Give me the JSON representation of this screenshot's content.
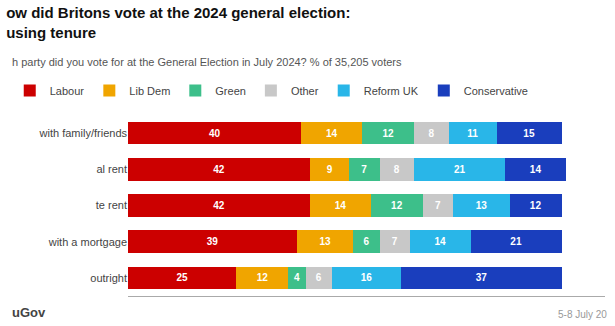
{
  "chart_data": {
    "type": "bar",
    "orientation": "horizontal",
    "stacked": true,
    "title": "ow did Britons vote at the 2024 general election:\nusing tenure",
    "subtitle": "h party did you vote for at the General Election in July 2024? % of 35,205 voters",
    "annotations": [
      "uGov",
      "5-8 July 20"
    ],
    "categories": [
      "with family/friends",
      "al rent",
      "te rent",
      "with a mortgage",
      "outright"
    ],
    "series": [
      {
        "name": "Labour",
        "color": "#cc0000",
        "values": [
          40,
          42,
          42,
          39,
          25
        ]
      },
      {
        "name": "Lib Dem",
        "color": "#f0a500",
        "values": [
          14,
          9,
          14,
          13,
          12
        ]
      },
      {
        "name": "Green",
        "color": "#3dbf8a",
        "values": [
          12,
          7,
          12,
          6,
          4
        ]
      },
      {
        "name": "Other",
        "color": "#c8c8c8",
        "values": [
          8,
          8,
          7,
          7,
          6
        ]
      },
      {
        "name": "Reform UK",
        "color": "#29b6e8",
        "values": [
          11,
          21,
          13,
          14,
          16
        ]
      },
      {
        "name": "Conservative",
        "color": "#1a3ebd",
        "values": [
          15,
          14,
          12,
          21,
          37
        ]
      }
    ],
    "xlim": [
      0,
      110
    ],
    "data_labels": true,
    "legend": "top",
    "grid": false,
    "tick_labels": "y"
  }
}
